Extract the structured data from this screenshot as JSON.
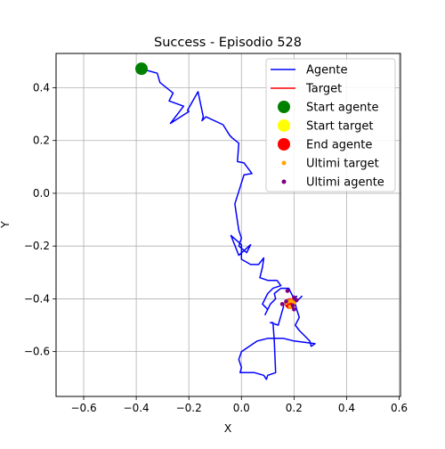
{
  "colors": {
    "agent_path": "#0000ff",
    "target_path": "#ff0000",
    "start_agent": "#008000",
    "start_target": "#ffff00",
    "end_agent": "#ff0000",
    "last_target": "#ffa500",
    "last_agent": "#800080",
    "grid": "#b0b0b0"
  },
  "chart_data": {
    "type": "line",
    "title": "Success - Episodio 528",
    "xlabel": "X",
    "ylabel": "Y",
    "xlim": [
      -0.705,
      0.605
    ],
    "ylim": [
      -0.77,
      0.53
    ],
    "xticks": [
      -0.6,
      -0.4,
      -0.2,
      0.0,
      0.2,
      0.4,
      0.6
    ],
    "xtick_labels": [
      "−0.6",
      "−0.4",
      "−0.2",
      "0.0",
      "0.2",
      "0.4",
      "0.6"
    ],
    "yticks": [
      -0.6,
      -0.4,
      -0.2,
      0.0,
      0.2,
      0.4
    ],
    "ytick_labels": [
      "−0.6",
      "−0.4",
      "−0.2",
      "0.0",
      "0.2",
      "0.4"
    ],
    "grid": true,
    "legend_position": "top-right",
    "legend": [
      {
        "label": "Agente",
        "kind": "line",
        "color": "#0000ff"
      },
      {
        "label": "Target",
        "kind": "line",
        "color": "#ff0000"
      },
      {
        "label": "Start agente",
        "kind": "dot",
        "color": "#008000"
      },
      {
        "label": "Start target",
        "kind": "dot",
        "color": "#ffff00"
      },
      {
        "label": "End agente",
        "kind": "dot",
        "color": "#ff0000"
      },
      {
        "label": "Ultimi target",
        "kind": "small-dot",
        "color": "#ffa500"
      },
      {
        "label": "Ultimi agente",
        "kind": "small-dot",
        "color": "#800080"
      }
    ],
    "series": [
      {
        "name": "Agente",
        "points": [
          [
            -0.385,
            0.473
          ],
          [
            -0.32,
            0.455
          ],
          [
            -0.31,
            0.42
          ],
          [
            -0.26,
            0.38
          ],
          [
            -0.275,
            0.35
          ],
          [
            -0.22,
            0.33
          ],
          [
            -0.27,
            0.265
          ],
          [
            -0.2,
            0.31
          ],
          [
            -0.205,
            0.315
          ],
          [
            -0.165,
            0.385
          ],
          [
            -0.145,
            0.29
          ],
          [
            -0.15,
            0.275
          ],
          [
            -0.135,
            0.29
          ],
          [
            -0.07,
            0.26
          ],
          [
            -0.045,
            0.22
          ],
          [
            -0.035,
            0.21
          ],
          [
            -0.01,
            0.19
          ],
          [
            -0.015,
            0.12
          ],
          [
            0.01,
            0.115
          ],
          [
            0.04,
            0.075
          ],
          [
            0.01,
            0.07
          ],
          [
            -0.025,
            -0.04
          ],
          [
            -0.02,
            -0.075
          ],
          [
            -0.01,
            -0.14
          ],
          [
            0.0,
            -0.17
          ],
          [
            -0.01,
            -0.2
          ],
          [
            0.02,
            -0.225
          ],
          [
            0.035,
            -0.195
          ],
          [
            -0.01,
            -0.235
          ],
          [
            -0.04,
            -0.16
          ],
          [
            0.0,
            -0.195
          ],
          [
            0.0,
            -0.25
          ],
          [
            0.035,
            -0.27
          ],
          [
            0.065,
            -0.27
          ],
          [
            0.085,
            -0.245
          ],
          [
            0.08,
            -0.28
          ],
          [
            0.07,
            -0.32
          ],
          [
            0.1,
            -0.33
          ],
          [
            0.135,
            -0.33
          ],
          [
            0.15,
            -0.35
          ],
          [
            0.12,
            -0.36
          ],
          [
            0.1,
            -0.38
          ],
          [
            0.08,
            -0.42
          ],
          [
            0.1,
            -0.44
          ],
          [
            0.09,
            -0.46
          ],
          [
            0.11,
            -0.42
          ],
          [
            0.13,
            -0.4
          ],
          [
            0.125,
            -0.38
          ],
          [
            0.15,
            -0.36
          ],
          [
            0.18,
            -0.36
          ],
          [
            0.2,
            -0.4
          ],
          [
            0.21,
            -0.44
          ],
          [
            0.22,
            -0.47
          ],
          [
            0.205,
            -0.5
          ],
          [
            0.22,
            -0.52
          ],
          [
            0.24,
            -0.54
          ],
          [
            0.26,
            -0.56
          ],
          [
            0.265,
            -0.58
          ],
          [
            0.28,
            -0.57
          ],
          [
            0.2,
            -0.56
          ],
          [
            0.16,
            -0.55
          ],
          [
            0.1,
            -0.55
          ],
          [
            0.06,
            -0.56
          ],
          [
            0.03,
            -0.58
          ],
          [
            0.0,
            -0.6
          ],
          [
            -0.01,
            -0.63
          ],
          [
            0.0,
            -0.66
          ],
          [
            -0.005,
            -0.68
          ],
          [
            0.05,
            -0.68
          ],
          [
            0.085,
            -0.69
          ],
          [
            0.095,
            -0.705
          ],
          [
            0.1,
            -0.69
          ],
          [
            0.13,
            -0.68
          ],
          [
            0.125,
            -0.56
          ],
          [
            0.12,
            -0.49
          ],
          [
            0.11,
            -0.49
          ],
          [
            0.14,
            -0.5
          ],
          [
            0.16,
            -0.43
          ],
          [
            0.16,
            -0.42
          ],
          [
            0.19,
            -0.42
          ],
          [
            0.21,
            -0.39
          ],
          [
            0.195,
            -0.42
          ],
          [
            0.21,
            -0.41
          ],
          [
            0.23,
            -0.39
          ],
          [
            0.2,
            -0.42
          ],
          [
            0.17,
            -0.41
          ],
          [
            0.16,
            -0.42
          ],
          [
            0.185,
            -0.415
          ]
        ]
      },
      {
        "name": "Target",
        "points": [
          [
            0.172,
            -0.422
          ],
          [
            0.18,
            -0.42
          ],
          [
            0.19,
            -0.418
          ],
          [
            0.196,
            -0.414
          ],
          [
            0.19,
            -0.418
          ]
        ]
      }
    ],
    "markers": {
      "start_agente": [
        -0.38,
        0.472
      ],
      "start_target": [
        0.185,
        -0.418
      ],
      "end_agente": [
        0.185,
        -0.418
      ],
      "ultimi_target": [
        [
          0.17,
          -0.415
        ],
        [
          0.18,
          -0.41
        ],
        [
          0.19,
          -0.408
        ],
        [
          0.2,
          -0.415
        ],
        [
          0.185,
          -0.43
        ]
      ],
      "ultimi_agente": [
        [
          0.175,
          -0.37
        ],
        [
          0.2,
          -0.395
        ],
        [
          0.21,
          -0.405
        ],
        [
          0.155,
          -0.42
        ],
        [
          0.17,
          -0.41
        ],
        [
          0.195,
          -0.425
        ],
        [
          0.2,
          -0.44
        ]
      ]
    }
  }
}
